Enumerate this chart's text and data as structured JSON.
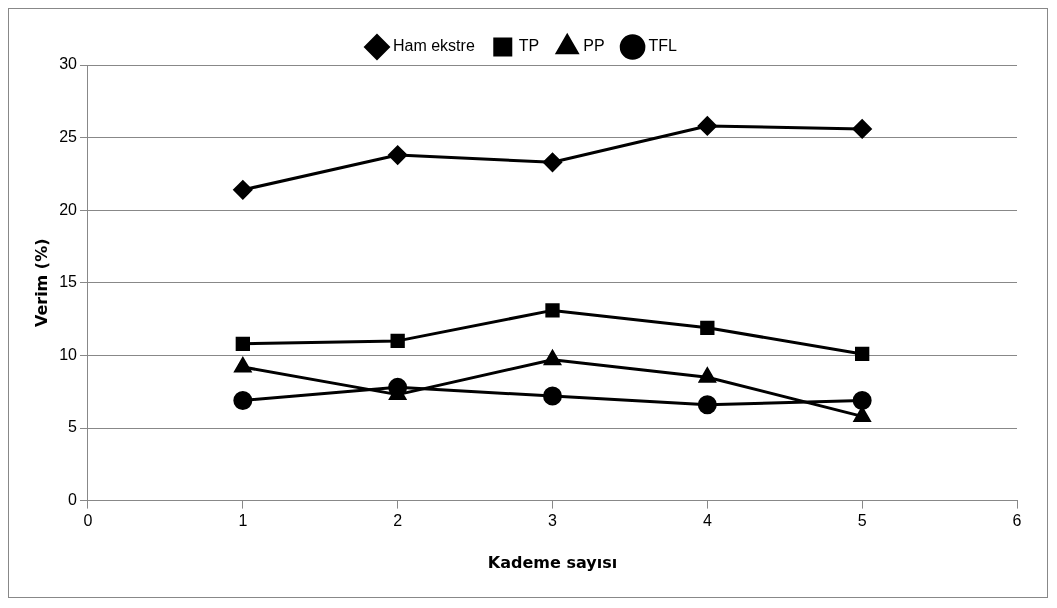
{
  "chart_data": {
    "type": "line",
    "xlabel": "Kademe sayısı",
    "ylabel": "Verim (%)",
    "x": [
      1,
      2,
      3,
      4,
      5
    ],
    "xlim": [
      0,
      6
    ],
    "xticks": [
      0,
      1,
      2,
      3,
      4,
      5,
      6
    ],
    "ylim": [
      0,
      30
    ],
    "yticks": [
      0,
      5,
      10,
      15,
      20,
      25,
      30
    ],
    "grid": "y",
    "legend": "top",
    "line_style": "solid",
    "series": [
      {
        "name": "Ham ekstre",
        "color": "#000000",
        "marker": "diamond",
        "values": [
          21.4,
          23.8,
          23.3,
          25.8,
          25.6
        ]
      },
      {
        "name": "TP",
        "color": "#000000",
        "marker": "square",
        "values": [
          10.8,
          11.0,
          13.1,
          11.9,
          10.1
        ]
      },
      {
        "name": "PP",
        "color": "#000000",
        "marker": "triangle",
        "values": [
          9.2,
          7.3,
          9.7,
          8.5,
          5.8
        ]
      },
      {
        "name": "TFL",
        "color": "#000000",
        "marker": "circle",
        "values": [
          6.9,
          7.8,
          7.2,
          6.6,
          6.9
        ]
      }
    ]
  }
}
